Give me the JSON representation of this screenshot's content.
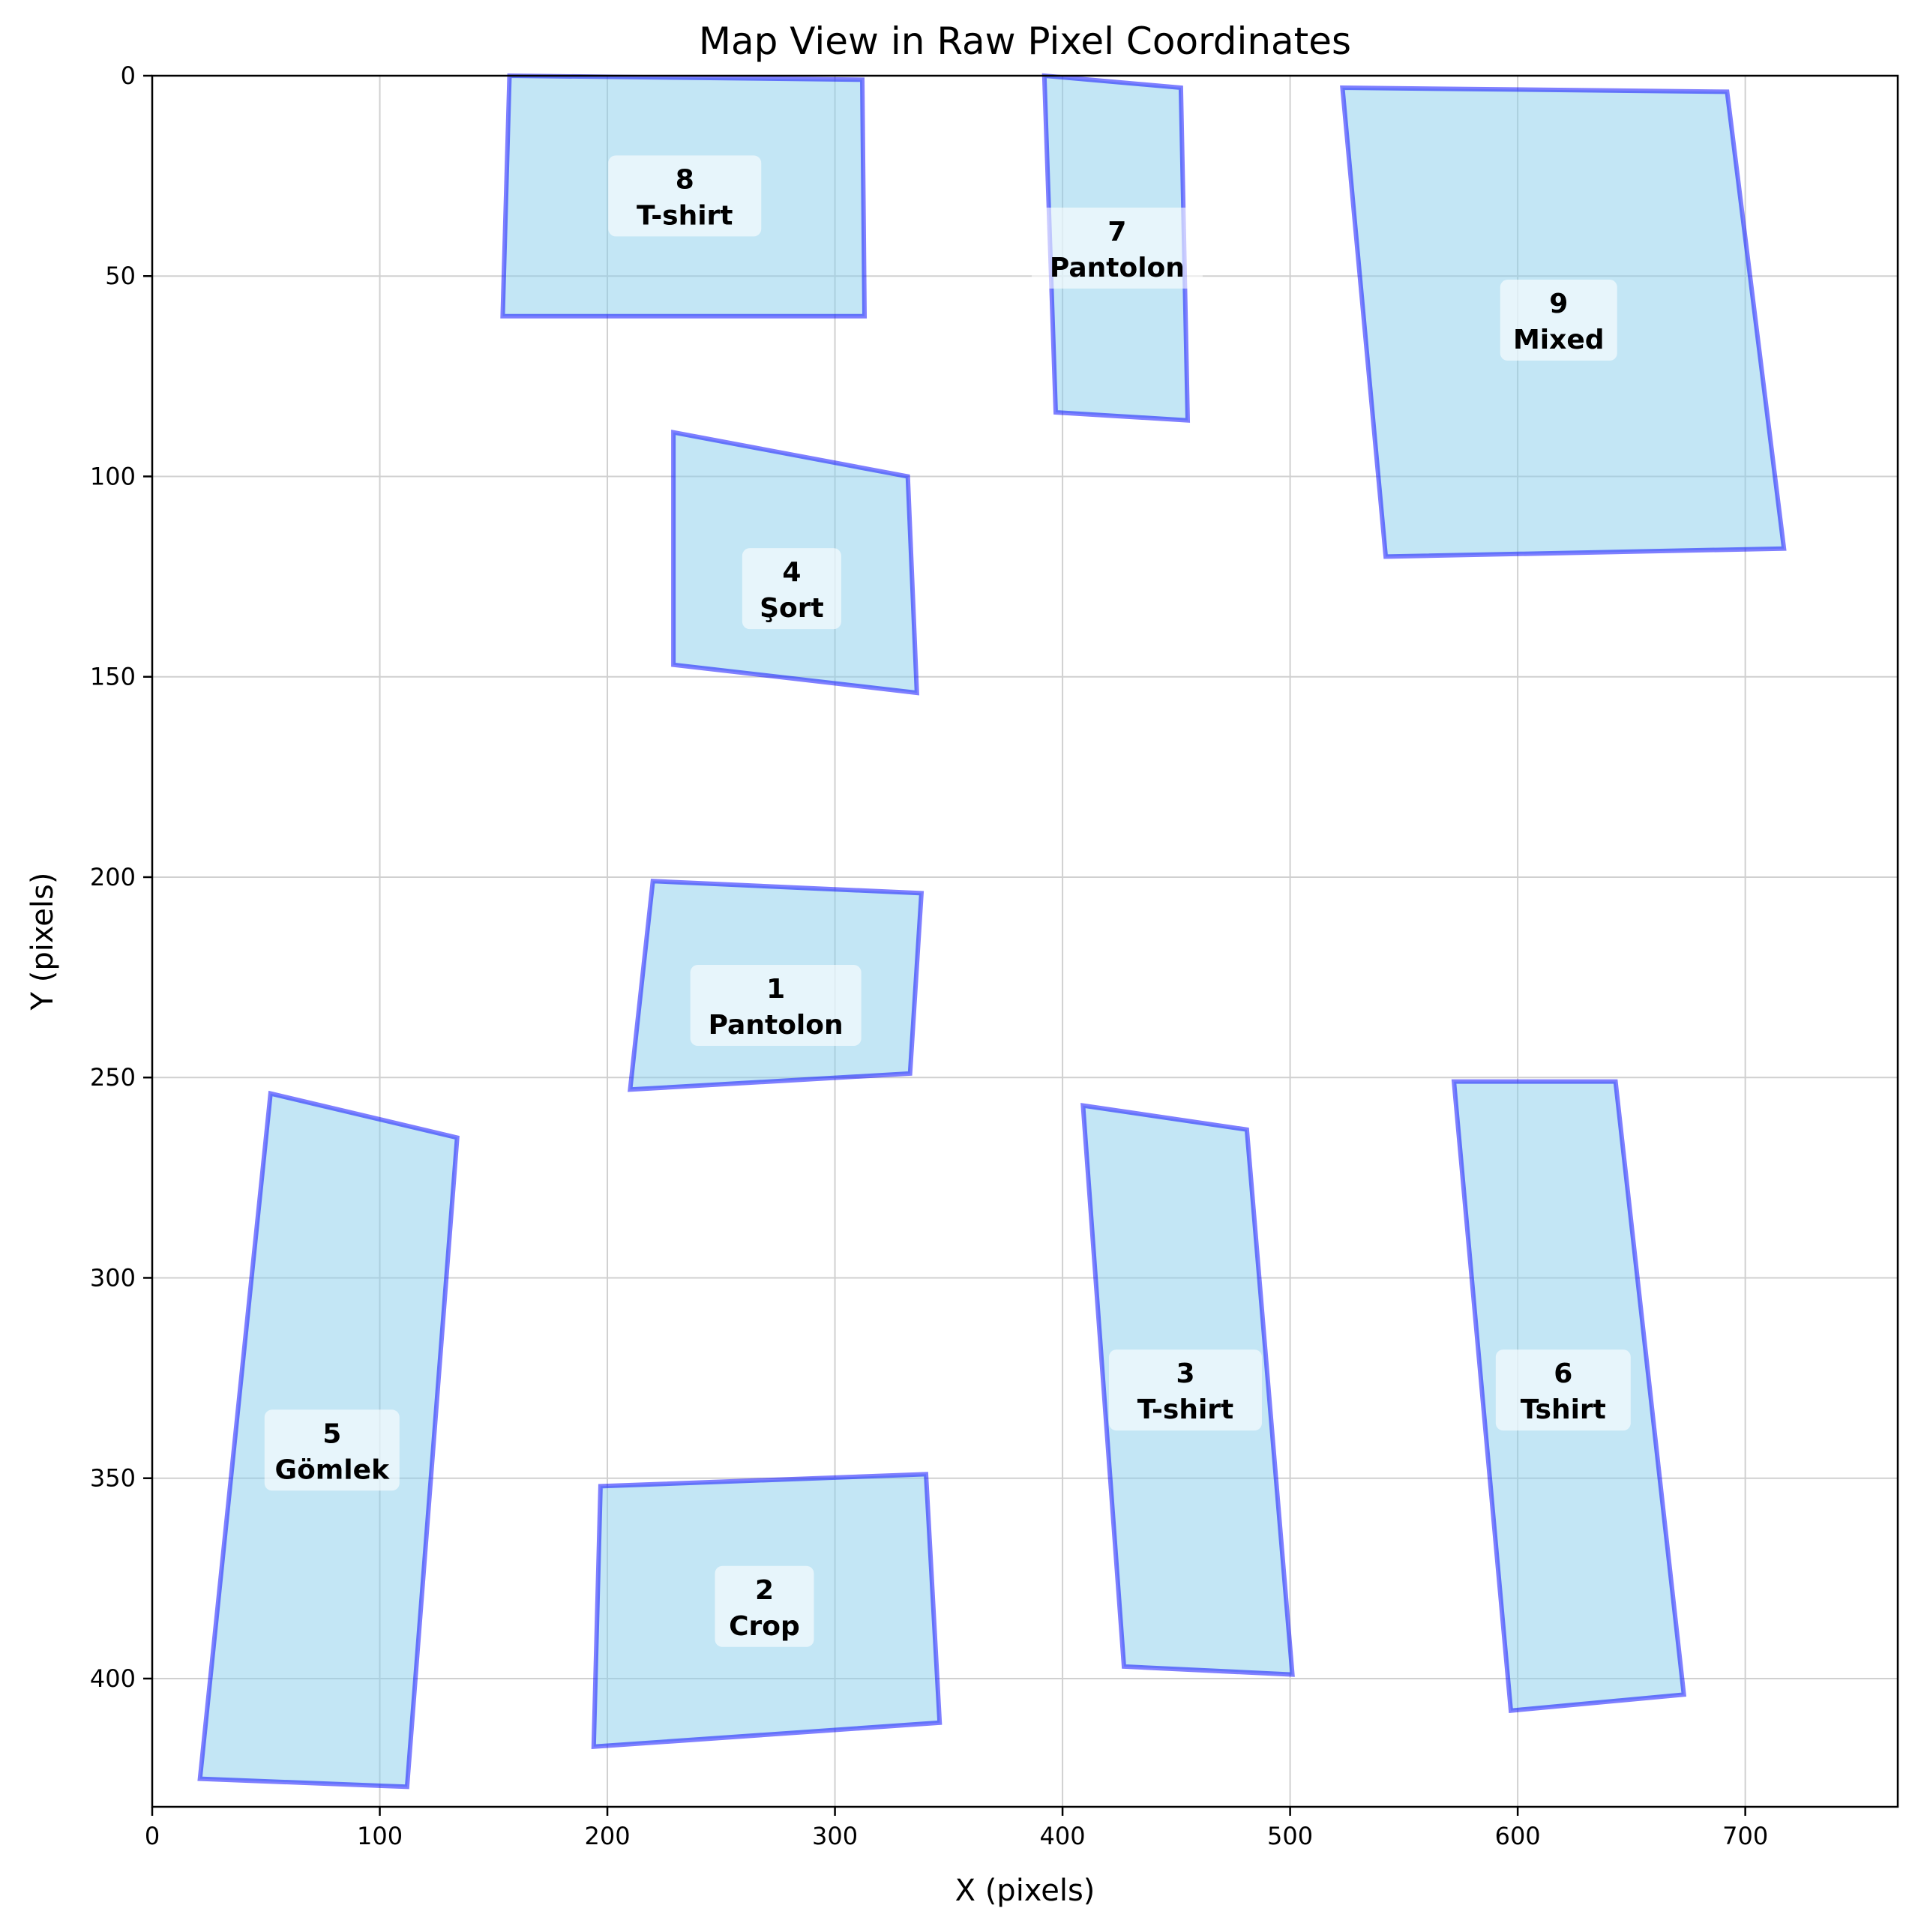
{
  "chart_data": {
    "type": "scatter",
    "title": "Map View in Raw Pixel Coordinates",
    "xlabel": "X (pixels)",
    "ylabel": "Y (pixels)",
    "xlim": [
      0,
      767
    ],
    "ylim": [
      432,
      0
    ],
    "y_inverted": true,
    "grid": true,
    "x_ticks": [
      0,
      100,
      200,
      300,
      400,
      500,
      600,
      700
    ],
    "y_ticks": [
      0,
      50,
      100,
      150,
      200,
      250,
      300,
      350,
      400
    ],
    "colors": {
      "fill": "#87ceeb",
      "edge": "#0000ff"
    },
    "regions": [
      {
        "id": "1",
        "label": "Pantolon",
        "center": [
          274,
          232
        ],
        "polygon": [
          [
            220,
            201
          ],
          [
            338,
            204
          ],
          [
            333,
            249
          ],
          [
            210,
            253
          ]
        ]
      },
      {
        "id": "2",
        "label": "Crop",
        "center": [
          269,
          382
        ],
        "polygon": [
          [
            197,
            352
          ],
          [
            340,
            349
          ],
          [
            346,
            411
          ],
          [
            194,
            417
          ]
        ]
      },
      {
        "id": "3",
        "label": "T-shirt",
        "center": [
          454,
          328
        ],
        "polygon": [
          [
            409,
            257
          ],
          [
            481,
            263
          ],
          [
            501,
            399
          ],
          [
            427,
            397
          ]
        ]
      },
      {
        "id": "4",
        "label": "Şort",
        "center": [
          281,
          128
        ],
        "polygon": [
          [
            229,
            89
          ],
          [
            332,
            100
          ],
          [
            336,
            154
          ],
          [
            229,
            147
          ]
        ]
      },
      {
        "id": "5",
        "label": "Gömlek",
        "center": [
          79,
          343
        ],
        "polygon": [
          [
            52,
            254
          ],
          [
            134,
            265
          ],
          [
            112,
            427
          ],
          [
            21,
            425
          ]
        ]
      },
      {
        "id": "6",
        "label": "Tshirt",
        "center": [
          620,
          328
        ],
        "polygon": [
          [
            572,
            251
          ],
          [
            643,
            251
          ],
          [
            673,
            404
          ],
          [
            597,
            408
          ]
        ]
      },
      {
        "id": "7",
        "label": "Pantolon",
        "center": [
          424,
          43
        ],
        "polygon": [
          [
            392,
            0
          ],
          [
            452,
            3
          ],
          [
            455,
            86
          ],
          [
            397,
            84
          ]
        ]
      },
      {
        "id": "8",
        "label": "T-shirt",
        "center": [
          234,
          30
        ],
        "polygon": [
          [
            157,
            0
          ],
          [
            312,
            1
          ],
          [
            313,
            60
          ],
          [
            154,
            60
          ]
        ]
      },
      {
        "id": "9",
        "label": "Mixed",
        "center": [
          618,
          61
        ],
        "polygon": [
          [
            523,
            3
          ],
          [
            692,
            4
          ],
          [
            717,
            118
          ],
          [
            542,
            120
          ]
        ]
      }
    ]
  }
}
